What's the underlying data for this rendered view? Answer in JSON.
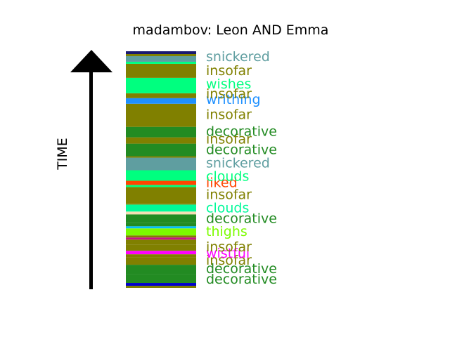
{
  "chart_data": {
    "type": "timeline-strip",
    "title": "madambov: Leon AND Emma",
    "ylabel": "TIME",
    "x_range": [
      0,
      1
    ],
    "y_range": [
      0,
      338
    ],
    "segments": [
      {
        "y0": 0,
        "y1": 3,
        "color": "#808000"
      },
      {
        "y0": 3,
        "y1": 7,
        "color": "#0000cd"
      },
      {
        "y0": 7,
        "y1": 20,
        "color": "#228b22"
      },
      {
        "y0": 20,
        "y1": 33,
        "color": "#228b22"
      },
      {
        "y0": 33,
        "y1": 44,
        "color": "#808000"
      },
      {
        "y0": 44,
        "y1": 48,
        "color": "#808000"
      },
      {
        "y0": 48,
        "y1": 53,
        "color": "#ff00ff"
      },
      {
        "y0": 53,
        "y1": 62,
        "color": "#808000"
      },
      {
        "y0": 62,
        "y1": 69,
        "color": "#808000"
      },
      {
        "y0": 69,
        "y1": 72,
        "color": "#c71585"
      },
      {
        "y0": 72,
        "y1": 75,
        "color": "#808000"
      },
      {
        "y0": 75,
        "y1": 85,
        "color": "#7cfc00"
      },
      {
        "y0": 85,
        "y1": 88,
        "color": "#00bfff"
      },
      {
        "y0": 88,
        "y1": 93,
        "color": "#228b22"
      },
      {
        "y0": 93,
        "y1": 105,
        "color": "#228b22"
      },
      {
        "y0": 105,
        "y1": 109,
        "color": "#f5deb3"
      },
      {
        "y0": 109,
        "y1": 119,
        "color": "#00fa9a"
      },
      {
        "y0": 119,
        "y1": 121,
        "color": "#808000"
      },
      {
        "y0": 121,
        "y1": 144,
        "color": "#808000"
      },
      {
        "y0": 144,
        "y1": 147,
        "color": "#00ff7f"
      },
      {
        "y0": 147,
        "y1": 153,
        "color": "#ff4500"
      },
      {
        "y0": 153,
        "y1": 168,
        "color": "#00ff7f"
      },
      {
        "y0": 168,
        "y1": 186,
        "color": "#5f9ea0"
      },
      {
        "y0": 186,
        "y1": 188,
        "color": "#808000"
      },
      {
        "y0": 188,
        "y1": 206,
        "color": "#228b22"
      },
      {
        "y0": 206,
        "y1": 215,
        "color": "#808000"
      },
      {
        "y0": 215,
        "y1": 230,
        "color": "#228b22"
      },
      {
        "y0": 230,
        "y1": 263,
        "color": "#808000"
      },
      {
        "y0": 263,
        "y1": 271,
        "color": "#1e90ff"
      },
      {
        "y0": 271,
        "y1": 278,
        "color": "#808000"
      },
      {
        "y0": 278,
        "y1": 300,
        "color": "#00ff7f"
      },
      {
        "y0": 300,
        "y1": 320,
        "color": "#808000"
      },
      {
        "y0": 320,
        "y1": 323,
        "color": "#00ff7f"
      },
      {
        "y0": 323,
        "y1": 331,
        "color": "#5f9ea0"
      },
      {
        "y0": 331,
        "y1": 334,
        "color": "#808000"
      },
      {
        "y0": 334,
        "y1": 338,
        "color": "#191970"
      }
    ],
    "labels": [
      {
        "text": "decorative",
        "y": 13,
        "color": "#228b22"
      },
      {
        "text": "decorative",
        "y": 28,
        "color": "#228b22"
      },
      {
        "text": "insofar",
        "y": 40,
        "color": "#808000"
      },
      {
        "text": "wistful",
        "y": 50,
        "color": "#ff00ff"
      },
      {
        "text": "insofar",
        "y": 59,
        "color": "#808000"
      },
      {
        "text": "thighs",
        "y": 81,
        "color": "#7cfc00"
      },
      {
        "text": "decorative",
        "y": 100,
        "color": "#228b22"
      },
      {
        "text": "clouds",
        "y": 115,
        "color": "#00fa9a"
      },
      {
        "text": "insofar",
        "y": 134,
        "color": "#808000"
      },
      {
        "text": "liked",
        "y": 151,
        "color": "#ff4500"
      },
      {
        "text": "clouds",
        "y": 160,
        "color": "#00ff7f"
      },
      {
        "text": "snickered",
        "y": 179,
        "color": "#5f9ea0"
      },
      {
        "text": "decorative",
        "y": 198,
        "color": "#228b22"
      },
      {
        "text": "insofar",
        "y": 213,
        "color": "#808000"
      },
      {
        "text": "decorative",
        "y": 224,
        "color": "#228b22"
      },
      {
        "text": "insofar",
        "y": 248,
        "color": "#808000"
      },
      {
        "text": "writhing",
        "y": 270,
        "color": "#1e90ff"
      },
      {
        "text": "insofar",
        "y": 278,
        "color": "#808000"
      },
      {
        "text": "wishes",
        "y": 292,
        "color": "#00ff7f"
      },
      {
        "text": "insofar",
        "y": 311,
        "color": "#808000"
      },
      {
        "text": "snickered",
        "y": 331,
        "color": "#5f9ea0"
      }
    ]
  }
}
